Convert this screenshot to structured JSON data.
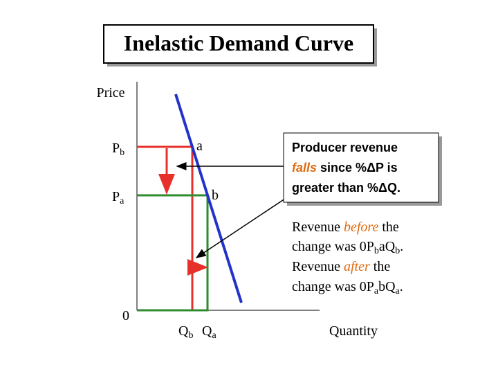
{
  "title": "Inelastic Demand Curve",
  "axes": {
    "y_label": "Price",
    "x_label": "Quantity",
    "origin": "0"
  },
  "price_labels": [
    {
      "base": "P",
      "sub": "b"
    },
    {
      "base": "P",
      "sub": "a"
    }
  ],
  "quantity_labels": [
    {
      "base": "Q",
      "sub": "b"
    },
    {
      "base": "Q",
      "sub": "a"
    }
  ],
  "points": [
    "a",
    "b"
  ],
  "box": {
    "lines": [
      [
        "Producer revenue"
      ],
      [
        "falls",
        " since %ΔP is"
      ],
      [
        "greater than %ΔQ."
      ]
    ]
  },
  "note": {
    "lines": [
      [
        "Revenue ",
        "before",
        " the"
      ],
      [
        "change was 0P",
        "b",
        "a",
        "Q",
        "b",
        "."
      ],
      [
        "Revenue ",
        "after",
        " the"
      ],
      [
        "change was 0P",
        "a",
        "b",
        "Q",
        "a",
        "."
      ]
    ]
  }
}
